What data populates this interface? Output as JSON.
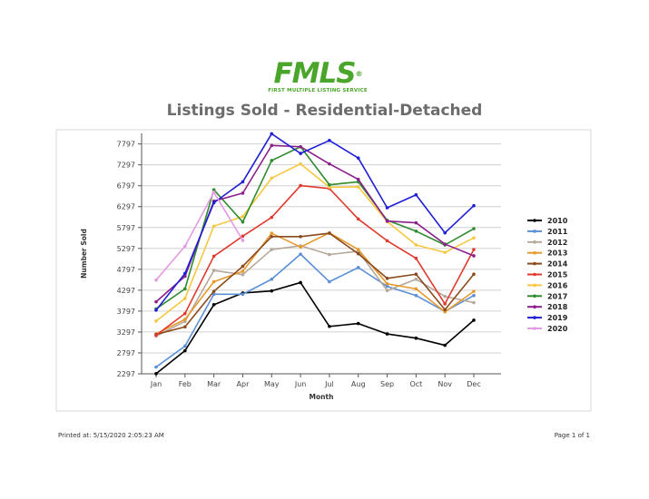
{
  "header": {
    "logo_text": "FMLS",
    "logo_mark": "®",
    "logo_subtitle": "FIRST MULTIPLE LISTING SERVICE"
  },
  "footer": {
    "printed_at": "Printed at:  5/15/2020 2:05:23 AM",
    "page": "Page 1 of 1"
  },
  "chart_data": {
    "type": "line",
    "title": "Listings Sold - Residential-Detached",
    "xlabel": "Month",
    "ylabel": "Number Sold",
    "categories": [
      "Jan",
      "Feb",
      "Mar",
      "Apr",
      "May",
      "Jun",
      "Jul",
      "Aug",
      "Sep",
      "Oct",
      "Nov",
      "Dec"
    ],
    "y_ticks": [
      2297,
      2797,
      3297,
      3797,
      4297,
      4797,
      5297,
      5797,
      6297,
      6797,
      7297,
      7797
    ],
    "ylim": [
      2297,
      8050
    ],
    "grid": true,
    "legend_position": "right",
    "series": [
      {
        "name": "2010",
        "color": "#000000",
        "values": [
          2300,
          2850,
          3950,
          4230,
          4280,
          4480,
          3430,
          3500,
          3250,
          3150,
          2980,
          3580
        ]
      },
      {
        "name": "2011",
        "color": "#5b8fd6",
        "values": [
          2460,
          2960,
          4200,
          4200,
          4560,
          5160,
          4500,
          4840,
          4390,
          4170,
          3790,
          4170
        ]
      },
      {
        "name": "2012",
        "color": "#b5a89a",
        "values": [
          3200,
          3550,
          4770,
          4670,
          5270,
          5360,
          5150,
          5230,
          4290,
          4560,
          4150,
          4000
        ]
      },
      {
        "name": "2013",
        "color": "#e69a2e",
        "values": [
          3250,
          3600,
          4500,
          4750,
          5660,
          5330,
          5670,
          5270,
          4450,
          4330,
          3780,
          4270
        ]
      },
      {
        "name": "2014",
        "color": "#8b4a1e",
        "values": [
          3240,
          3420,
          4270,
          4870,
          5580,
          5580,
          5660,
          5170,
          4580,
          4680,
          3830,
          4680
        ]
      },
      {
        "name": "2015",
        "color": "#e03a2e",
        "values": [
          3220,
          3740,
          5110,
          5590,
          6040,
          6800,
          6730,
          6000,
          5480,
          5060,
          3970,
          5270
        ]
      },
      {
        "name": "2016",
        "color": "#f6c842",
        "values": [
          3560,
          4100,
          5830,
          6060,
          6980,
          7320,
          6760,
          6770,
          5940,
          5380,
          5200,
          5550
        ]
      },
      {
        "name": "2017",
        "color": "#2e8b2e",
        "values": [
          3850,
          4330,
          6700,
          5930,
          7400,
          7730,
          6820,
          6890,
          5970,
          5710,
          5380,
          5770
        ]
      },
      {
        "name": "2018",
        "color": "#8b1f8b",
        "values": [
          4020,
          4630,
          6430,
          6620,
          7760,
          7730,
          7320,
          6950,
          5950,
          5910,
          5400,
          5120
        ]
      },
      {
        "name": "2019",
        "color": "#1f1fd6",
        "values": [
          3820,
          4700,
          6390,
          6890,
          8040,
          7570,
          7880,
          7460,
          6270,
          6580,
          5670,
          6320
        ]
      },
      {
        "name": "2020",
        "color": "#e49be4",
        "values": [
          4540,
          5350,
          6640,
          5490,
          null,
          null,
          null,
          null,
          null,
          null,
          null,
          null
        ]
      }
    ]
  }
}
